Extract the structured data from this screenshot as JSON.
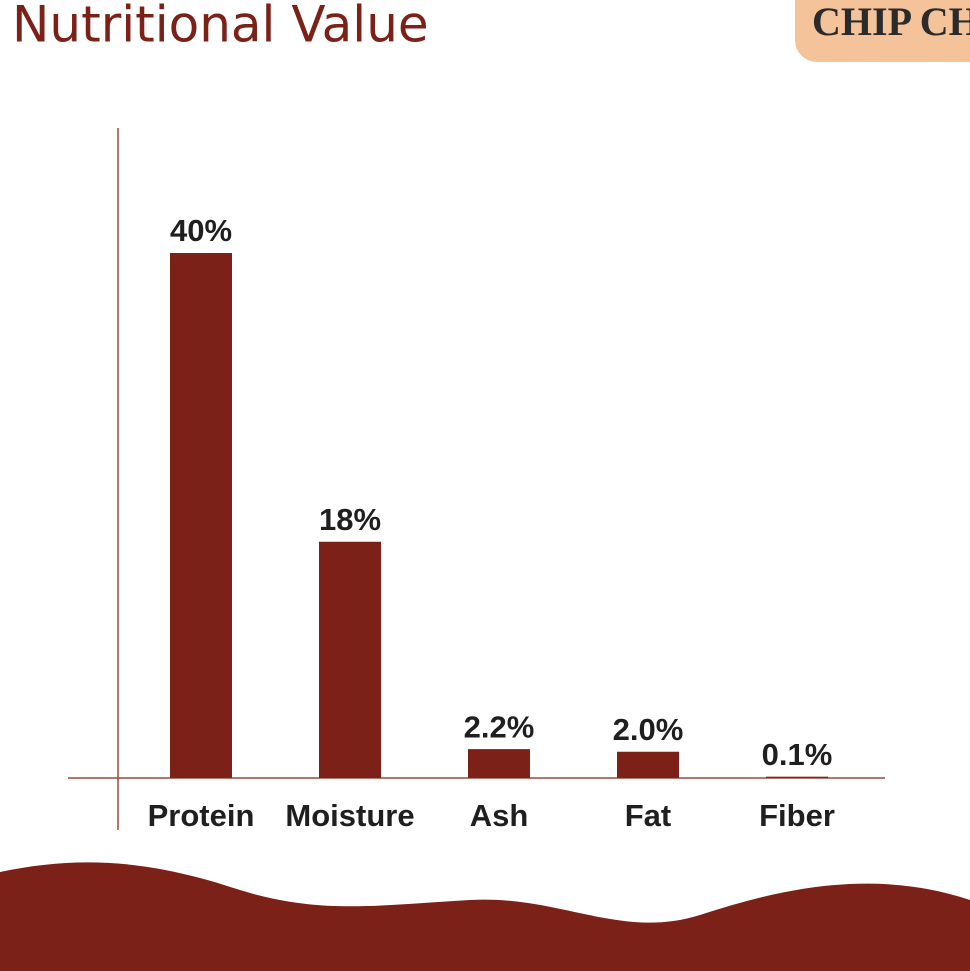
{
  "logo": "CHIP CHOP",
  "chart_data": {
    "type": "bar",
    "title": "Nutritional Value",
    "categories": [
      "Protein",
      "Moisture",
      "Ash",
      "Fat",
      "Fiber"
    ],
    "values": [
      40,
      18,
      2.2,
      2.0,
      0.1
    ],
    "value_labels": [
      "40%",
      "18%",
      "2.2%",
      "2.0%",
      "0.1%"
    ],
    "color": "#7b2118"
  }
}
